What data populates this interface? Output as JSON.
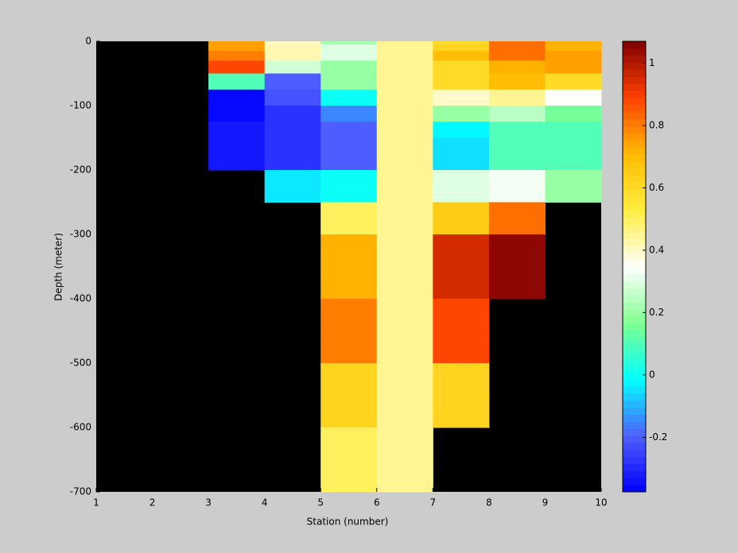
{
  "chart_data": {
    "type": "heatmap",
    "xlabel": "Station (number)",
    "ylabel": "Depth (meter)",
    "x_edges": [
      1,
      2,
      3,
      4,
      5,
      6,
      7,
      8,
      9,
      10
    ],
    "y_edges": [
      0,
      -5,
      -15,
      -30,
      -50,
      -75,
      -100,
      -125,
      -150,
      -200,
      -250,
      -300,
      -350,
      -400,
      -450,
      -500,
      -550,
      -600,
      -650,
      -700
    ],
    "values": [
      [
        null,
        null,
        0.75,
        0.4,
        0.22,
        0.45,
        0.6,
        0.82,
        0.72
      ],
      [
        null,
        null,
        0.75,
        0.42,
        0.3,
        0.45,
        0.62,
        0.82,
        0.72
      ],
      [
        null,
        null,
        0.8,
        0.42,
        0.3,
        0.45,
        0.7,
        0.82,
        0.75
      ],
      [
        null,
        null,
        0.88,
        0.28,
        0.2,
        0.45,
        0.6,
        0.72,
        0.75
      ],
      [
        null,
        null,
        0.1,
        -0.2,
        0.2,
        0.45,
        0.6,
        0.7,
        0.6
      ],
      [
        null,
        null,
        -0.36,
        -0.22,
        0.0,
        0.45,
        0.4,
        0.45,
        0.35
      ],
      [
        null,
        null,
        -0.36,
        -0.28,
        -0.15,
        0.45,
        0.2,
        0.25,
        0.15
      ],
      [
        null,
        null,
        -0.33,
        -0.28,
        -0.2,
        0.45,
        -0.02,
        0.1,
        0.1
      ],
      [
        null,
        null,
        -0.33,
        -0.28,
        -0.2,
        0.45,
        -0.05,
        0.1,
        0.1
      ],
      [
        null,
        null,
        null,
        -0.04,
        0.0,
        0.45,
        0.3,
        0.33,
        0.2
      ],
      [
        null,
        null,
        null,
        null,
        0.5,
        0.45,
        0.65,
        0.82,
        null
      ],
      [
        null,
        null,
        null,
        null,
        0.72,
        0.45,
        0.95,
        1.05,
        null
      ],
      [
        null,
        null,
        null,
        null,
        0.72,
        0.45,
        0.95,
        1.05,
        null
      ],
      [
        null,
        null,
        null,
        null,
        0.8,
        0.45,
        0.88,
        null,
        null
      ],
      [
        null,
        null,
        null,
        null,
        0.8,
        0.45,
        0.88,
        null,
        null
      ],
      [
        null,
        null,
        null,
        null,
        0.62,
        0.45,
        0.62,
        null,
        null
      ],
      [
        null,
        null,
        null,
        null,
        0.62,
        0.45,
        0.62,
        null,
        null
      ],
      [
        null,
        null,
        null,
        null,
        0.5,
        0.45,
        null,
        null,
        null
      ],
      [
        null,
        null,
        null,
        null,
        0.5,
        0.45,
        null,
        null,
        null
      ]
    ],
    "colormap": [
      "#0000ff",
      "#5060ff",
      "#00ffff",
      "#80ff90",
      "#ffffff",
      "#ffee40",
      "#ffbb00",
      "#ff4000",
      "#800000"
    ],
    "background": "#000000",
    "xlim": [
      1,
      10
    ],
    "ylim": [
      -700,
      0
    ],
    "xticks": [
      1,
      2,
      3,
      4,
      5,
      6,
      7,
      8,
      9,
      10
    ],
    "yticks": [
      -700,
      -600,
      -500,
      -400,
      -300,
      -200,
      -100,
      0
    ],
    "clim": [
      -0.375,
      1.07
    ],
    "cticks": [
      -0.2,
      0,
      0.2,
      0.4,
      0.6,
      0.8,
      1
    ]
  }
}
